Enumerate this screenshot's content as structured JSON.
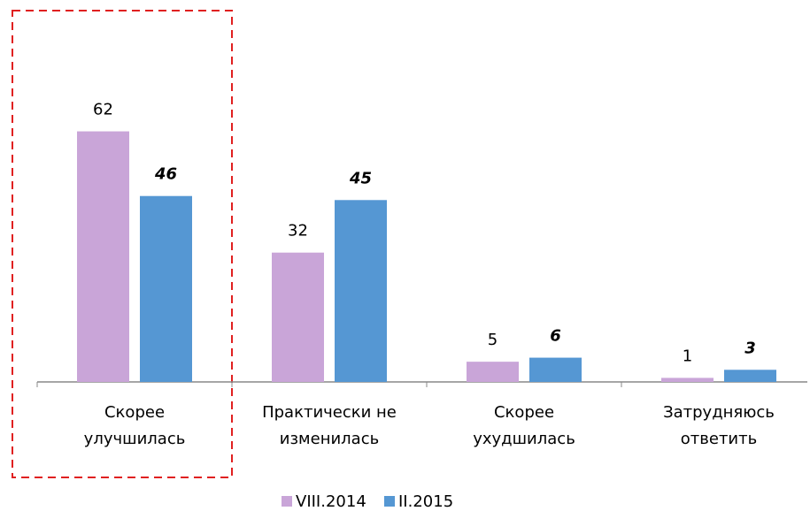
{
  "chart_data": {
    "type": "bar",
    "categories": [
      "Скорее\nулучшилась",
      "Практически не\nизменилась",
      "Скорее\nухудшилась",
      "Затрудняюсь\nответить"
    ],
    "series": [
      {
        "name": "VIII.2014",
        "color": "#c9a5d8",
        "values": [
          62,
          32,
          5,
          1
        ]
      },
      {
        "name": "II.2015",
        "color": "#5597d3",
        "values": [
          46,
          45,
          6,
          3
        ]
      }
    ],
    "ylim": [
      0,
      70
    ]
  }
}
